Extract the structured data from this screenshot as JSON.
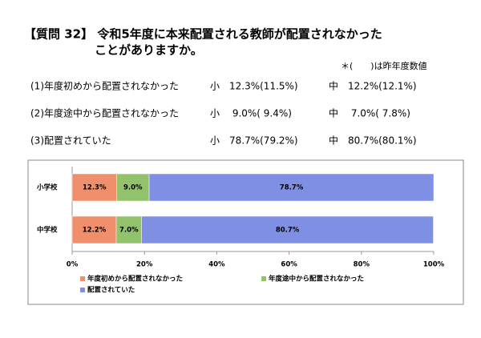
{
  "header": {
    "title_line1": "【質問 32】 令和5年度に本来配置される教師が配置されなかった",
    "title_line2": "ことがありますか。",
    "note": "＊(　　)は昨年度数値"
  },
  "rows": [
    {
      "label": "(1)年度初めから配置されなかった",
      "elementary": "小　12.3%(11.5%)",
      "junior": "中　12.2%(12.1%)"
    },
    {
      "label": "(2)年度途中から配置されなかった",
      "elementary": "小　 9.0%( 9.4%)",
      "junior": "中　 7.0%( 7.8%)"
    },
    {
      "label": "(3)配置されていた",
      "elementary": "小　78.7%(79.2%)",
      "junior": "中　80.7%(80.1%)"
    }
  ],
  "chart_data": {
    "type": "stacked-hbar",
    "categories": [
      "小学校",
      "中学校"
    ],
    "series": [
      {
        "name": "年度初めから配置されなかった",
        "color": "#ef8f6c",
        "values": [
          12.3,
          12.2
        ],
        "value_labels": [
          "12.3%",
          "12.2%"
        ]
      },
      {
        "name": "年度途中から配置されなかった",
        "color": "#93c26c",
        "values": [
          9.0,
          7.0
        ],
        "value_labels": [
          "9.0%",
          "7.0%"
        ]
      },
      {
        "name": "配置されていた",
        "color": "#7f8fe3",
        "values": [
          78.7,
          80.7
        ],
        "value_labels": [
          "78.7%",
          "80.7%"
        ]
      }
    ],
    "xlim": [
      0,
      100
    ],
    "xticks": [
      {
        "value": 0,
        "label": "0%"
      },
      {
        "value": 20,
        "label": "20%"
      },
      {
        "value": 40,
        "label": "40%"
      },
      {
        "value": 60,
        "label": "60%"
      },
      {
        "value": 80,
        "label": "80%"
      },
      {
        "value": 100,
        "label": "100%"
      }
    ]
  }
}
